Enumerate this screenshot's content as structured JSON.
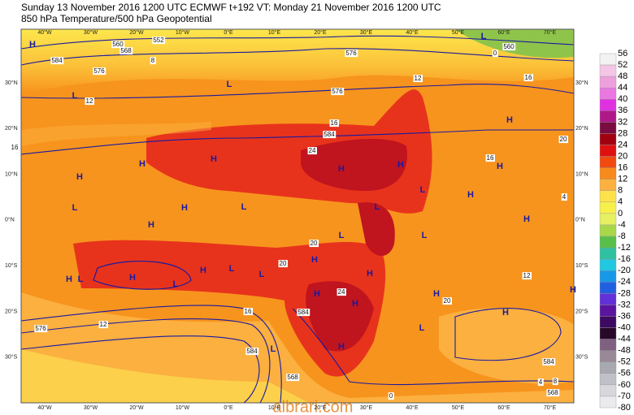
{
  "header": {
    "line1": "Sunday 13 November 2016 1200 UTC  ECMWF  t+192  VT: Monday 21 November 2016 1200 UTC",
    "line2": "850 hPa Temperature/500 hPa Geopotential"
  },
  "map": {
    "lon_labels": [
      "40°W",
      "30°W",
      "20°W",
      "10°W",
      "0°E",
      "10°E",
      "20°E",
      "30°E",
      "40°E",
      "50°E",
      "60°E",
      "70°E"
    ],
    "lat_labels": [
      "30°N",
      "20°N",
      "10°N",
      "0°N",
      "10°S",
      "20°S",
      "30°S"
    ],
    "centers": [
      "H",
      "L",
      "L",
      "H",
      "H",
      "H",
      "H",
      "H",
      "H",
      "H",
      "H",
      "H",
      "L",
      "L",
      "H",
      "H",
      "L",
      "L",
      "L",
      "L",
      "H",
      "H",
      "L",
      "L",
      "H",
      "H",
      "L",
      "L",
      "H",
      "H",
      "H",
      "H",
      "H",
      "H",
      "L",
      "H",
      "L",
      "L"
    ],
    "contour_labels": [
      "552",
      "560",
      "568",
      "8",
      "584",
      "576",
      "12",
      "576",
      "584",
      "16",
      "24",
      "16",
      "20",
      "12",
      "16",
      "4",
      "0",
      "560",
      "12",
      "20",
      "20",
      "24",
      "584",
      "16",
      "12",
      "576",
      "584",
      "568",
      "576",
      "16",
      "20",
      "4",
      "8",
      "568",
      "584",
      "0"
    ],
    "watermark": "albrari.com"
  },
  "colorbar": {
    "labels": [
      "56",
      "52",
      "48",
      "44",
      "40",
      "36",
      "32",
      "28",
      "24",
      "20",
      "16",
      "12",
      "8",
      "4",
      "0",
      "-4",
      "-8",
      "-12",
      "-16",
      "-20",
      "-24",
      "-28",
      "-32",
      "-36",
      "-40",
      "-44",
      "-48",
      "-52",
      "-56",
      "-60",
      "-70",
      "-80"
    ]
  }
}
